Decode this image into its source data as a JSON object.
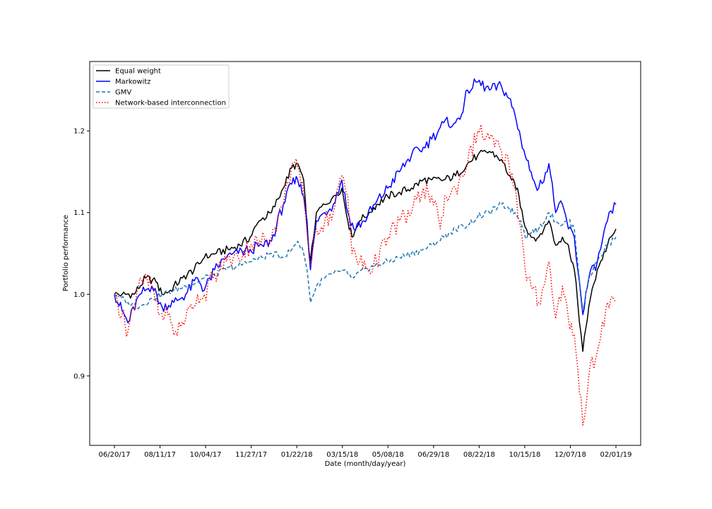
{
  "chart_data": {
    "type": "line",
    "title": "",
    "xlabel": "Date (month/day/year)",
    "ylabel": "Portfolio performance",
    "x_tick_labels": [
      "06/20/17",
      "08/11/17",
      "10/04/17",
      "11/27/17",
      "01/22/18",
      "03/15/18",
      "05/08/18",
      "06/29/18",
      "08/22/18",
      "10/15/18",
      "12/07/18",
      "02/01/19"
    ],
    "y_tick_labels": [
      "0.9",
      "1.0",
      "1.1",
      "1.2"
    ],
    "ylim": [
      0.815,
      1.285
    ],
    "grid": false,
    "legend_position": "top-left",
    "x_anchor_dates": [
      "06/20/17",
      "02/01/19"
    ],
    "series": [
      {
        "name": "Equal weight",
        "color": "#000000",
        "style": "solid",
        "points": [
          [
            "06/20/17",
            1.0
          ],
          [
            "06/29/17",
            1.0
          ],
          [
            "07/13/17",
            1.0
          ],
          [
            "07/27/17",
            1.02
          ],
          [
            "08/08/17",
            1.015
          ],
          [
            "08/15/17",
            1.0
          ],
          [
            "08/25/17",
            1.005
          ],
          [
            "09/08/17",
            1.02
          ],
          [
            "09/22/17",
            1.03
          ],
          [
            "10/04/17",
            1.045
          ],
          [
            "10/18/17",
            1.05
          ],
          [
            "11/01/17",
            1.055
          ],
          [
            "11/15/17",
            1.06
          ],
          [
            "11/27/17",
            1.07
          ],
          [
            "12/08/17",
            1.09
          ],
          [
            "12/22/17",
            1.1
          ],
          [
            "01/05/18",
            1.13
          ],
          [
            "01/15/18",
            1.155
          ],
          [
            "01/22/18",
            1.16
          ],
          [
            "01/29/18",
            1.14
          ],
          [
            "02/02/18",
            1.08
          ],
          [
            "02/06/18",
            1.04
          ],
          [
            "02/13/18",
            1.1
          ],
          [
            "02/23/18",
            1.11
          ],
          [
            "03/05/18",
            1.12
          ],
          [
            "03/15/18",
            1.13
          ],
          [
            "03/22/18",
            1.09
          ],
          [
            "03/27/18",
            1.07
          ],
          [
            "04/05/18",
            1.09
          ],
          [
            "04/16/18",
            1.1
          ],
          [
            "04/25/18",
            1.11
          ],
          [
            "05/08/18",
            1.12
          ],
          [
            "05/22/18",
            1.125
          ],
          [
            "06/05/18",
            1.13
          ],
          [
            "06/19/18",
            1.14
          ],
          [
            "06/29/18",
            1.14
          ],
          [
            "07/13/18",
            1.14
          ],
          [
            "07/27/18",
            1.145
          ],
          [
            "08/10/18",
            1.16
          ],
          [
            "08/22/18",
            1.17
          ],
          [
            "09/05/18",
            1.175
          ],
          [
            "09/19/18",
            1.165
          ],
          [
            "10/01/18",
            1.14
          ],
          [
            "10/08/18",
            1.13
          ],
          [
            "10/15/18",
            1.09
          ],
          [
            "10/24/18",
            1.07
          ],
          [
            "11/02/18",
            1.07
          ],
          [
            "11/14/18",
            1.09
          ],
          [
            "11/22/18",
            1.06
          ],
          [
            "11/30/18",
            1.07
          ],
          [
            "12/07/18",
            1.06
          ],
          [
            "12/14/18",
            1.03
          ],
          [
            "12/24/18",
            0.93
          ],
          [
            "12/31/18",
            0.985
          ],
          [
            "01/10/19",
            1.03
          ],
          [
            "01/22/19",
            1.06
          ],
          [
            "02/01/19",
            1.08
          ]
        ]
      },
      {
        "name": "Markowitz",
        "color": "#0000ff",
        "style": "solid",
        "points": [
          [
            "06/20/17",
            1.0
          ],
          [
            "06/29/17",
            0.98
          ],
          [
            "07/06/17",
            0.965
          ],
          [
            "07/20/17",
            1.0
          ],
          [
            "08/03/17",
            1.01
          ],
          [
            "08/15/17",
            0.985
          ],
          [
            "08/29/17",
            0.99
          ],
          [
            "09/12/17",
            1.0
          ],
          [
            "09/26/17",
            1.02
          ],
          [
            "10/04/17",
            1.005
          ],
          [
            "10/16/17",
            1.03
          ],
          [
            "10/30/17",
            1.045
          ],
          [
            "11/13/17",
            1.05
          ],
          [
            "11/27/17",
            1.055
          ],
          [
            "12/11/17",
            1.06
          ],
          [
            "12/22/17",
            1.065
          ],
          [
            "01/05/18",
            1.11
          ],
          [
            "01/15/18",
            1.135
          ],
          [
            "01/22/18",
            1.14
          ],
          [
            "01/29/18",
            1.12
          ],
          [
            "02/02/18",
            1.09
          ],
          [
            "02/06/18",
            1.03
          ],
          [
            "02/13/18",
            1.09
          ],
          [
            "02/23/18",
            1.1
          ],
          [
            "03/05/18",
            1.11
          ],
          [
            "03/15/18",
            1.14
          ],
          [
            "03/22/18",
            1.1
          ],
          [
            "03/29/18",
            1.08
          ],
          [
            "04/10/18",
            1.09
          ],
          [
            "04/23/18",
            1.11
          ],
          [
            "05/08/18",
            1.13
          ],
          [
            "05/22/18",
            1.15
          ],
          [
            "06/05/18",
            1.17
          ],
          [
            "06/19/18",
            1.18
          ],
          [
            "06/29/18",
            1.19
          ],
          [
            "07/13/18",
            1.21
          ],
          [
            "07/27/18",
            1.21
          ],
          [
            "08/03/18",
            1.22
          ],
          [
            "08/10/18",
            1.25
          ],
          [
            "08/22/18",
            1.26
          ],
          [
            "09/05/18",
            1.25
          ],
          [
            "09/19/18",
            1.255
          ],
          [
            "09/28/18",
            1.24
          ],
          [
            "10/05/18",
            1.22
          ],
          [
            "10/12/18",
            1.19
          ],
          [
            "10/17/18",
            1.17
          ],
          [
            "10/24/18",
            1.15
          ],
          [
            "11/02/18",
            1.13
          ],
          [
            "11/14/18",
            1.16
          ],
          [
            "11/22/18",
            1.1
          ],
          [
            "11/30/18",
            1.11
          ],
          [
            "12/07/18",
            1.08
          ],
          [
            "12/14/18",
            1.07
          ],
          [
            "12/24/18",
            0.975
          ],
          [
            "12/31/18",
            1.02
          ],
          [
            "01/10/19",
            1.04
          ],
          [
            "01/22/19",
            1.09
          ],
          [
            "02/01/19",
            1.11
          ]
        ]
      },
      {
        "name": "GMV",
        "color": "#1f77b4",
        "style": "dashed",
        "points": [
          [
            "06/20/17",
            1.0
          ],
          [
            "07/06/17",
            0.99
          ],
          [
            "07/20/17",
            0.985
          ],
          [
            "08/03/17",
            0.995
          ],
          [
            "08/15/17",
            1.0
          ],
          [
            "08/29/17",
            1.005
          ],
          [
            "09/12/17",
            1.01
          ],
          [
            "09/26/17",
            1.015
          ],
          [
            "10/04/17",
            1.02
          ],
          [
            "10/16/17",
            1.025
          ],
          [
            "10/30/17",
            1.03
          ],
          [
            "11/13/17",
            1.035
          ],
          [
            "11/27/17",
            1.04
          ],
          [
            "12/11/17",
            1.045
          ],
          [
            "12/22/17",
            1.05
          ],
          [
            "01/05/18",
            1.045
          ],
          [
            "01/15/18",
            1.055
          ],
          [
            "01/22/18",
            1.065
          ],
          [
            "01/29/18",
            1.05
          ],
          [
            "02/02/18",
            1.03
          ],
          [
            "02/06/18",
            0.99
          ],
          [
            "02/13/18",
            1.01
          ],
          [
            "02/23/18",
            1.02
          ],
          [
            "03/05/18",
            1.025
          ],
          [
            "03/15/18",
            1.03
          ],
          [
            "03/22/18",
            1.025
          ],
          [
            "03/29/18",
            1.02
          ],
          [
            "04/10/18",
            1.03
          ],
          [
            "04/23/18",
            1.035
          ],
          [
            "05/08/18",
            1.04
          ],
          [
            "05/22/18",
            1.045
          ],
          [
            "06/05/18",
            1.05
          ],
          [
            "06/19/18",
            1.055
          ],
          [
            "06/29/18",
            1.06
          ],
          [
            "07/13/18",
            1.07
          ],
          [
            "07/27/18",
            1.08
          ],
          [
            "08/10/18",
            1.085
          ],
          [
            "08/22/18",
            1.095
          ],
          [
            "09/05/18",
            1.1
          ],
          [
            "09/19/18",
            1.11
          ],
          [
            "09/28/18",
            1.105
          ],
          [
            "10/05/18",
            1.1
          ],
          [
            "10/12/18",
            1.09
          ],
          [
            "10/17/18",
            1.07
          ],
          [
            "10/24/18",
            1.075
          ],
          [
            "11/02/18",
            1.08
          ],
          [
            "11/14/18",
            1.1
          ],
          [
            "11/22/18",
            1.09
          ],
          [
            "11/30/18",
            1.085
          ],
          [
            "12/07/18",
            1.09
          ],
          [
            "12/14/18",
            1.08
          ],
          [
            "12/24/18",
            0.98
          ],
          [
            "12/31/18",
            1.02
          ],
          [
            "01/10/19",
            1.04
          ],
          [
            "01/22/19",
            1.06
          ],
          [
            "02/01/19",
            1.07
          ]
        ]
      },
      {
        "name": "Network-based interconnection",
        "color": "#ff0000",
        "style": "dotted",
        "points": [
          [
            "06/20/17",
            1.0
          ],
          [
            "06/29/17",
            0.975
          ],
          [
            "07/06/17",
            0.955
          ],
          [
            "07/20/17",
            1.02
          ],
          [
            "08/03/17",
            1.01
          ],
          [
            "08/11/17",
            0.975
          ],
          [
            "08/22/17",
            0.975
          ],
          [
            "08/29/17",
            0.95
          ],
          [
            "09/12/17",
            0.97
          ],
          [
            "09/26/17",
            1.0
          ],
          [
            "10/04/17",
            1.0
          ],
          [
            "10/16/17",
            1.025
          ],
          [
            "10/30/17",
            1.04
          ],
          [
            "11/13/17",
            1.045
          ],
          [
            "11/27/17",
            1.06
          ],
          [
            "12/08/17",
            1.065
          ],
          [
            "12/22/17",
            1.07
          ],
          [
            "01/05/18",
            1.11
          ],
          [
            "01/15/18",
            1.16
          ],
          [
            "01/22/18",
            1.155
          ],
          [
            "01/29/18",
            1.12
          ],
          [
            "02/02/18",
            1.08
          ],
          [
            "02/06/18",
            1.035
          ],
          [
            "02/13/18",
            1.08
          ],
          [
            "02/23/18",
            1.09
          ],
          [
            "03/05/18",
            1.1
          ],
          [
            "03/15/18",
            1.145
          ],
          [
            "03/22/18",
            1.12
          ],
          [
            "03/27/18",
            1.05
          ],
          [
            "04/05/18",
            1.04
          ],
          [
            "04/16/18",
            1.03
          ],
          [
            "04/25/18",
            1.04
          ],
          [
            "05/08/18",
            1.07
          ],
          [
            "05/22/18",
            1.09
          ],
          [
            "06/05/18",
            1.1
          ],
          [
            "06/19/18",
            1.13
          ],
          [
            "06/29/18",
            1.12
          ],
          [
            "07/09/18",
            1.08
          ],
          [
            "07/16/18",
            1.12
          ],
          [
            "07/27/18",
            1.13
          ],
          [
            "08/10/18",
            1.16
          ],
          [
            "08/22/18",
            1.2
          ],
          [
            "09/05/18",
            1.19
          ],
          [
            "09/19/18",
            1.175
          ],
          [
            "09/28/18",
            1.16
          ],
          [
            "10/05/18",
            1.13
          ],
          [
            "10/12/18",
            1.08
          ],
          [
            "10/17/18",
            1.03
          ],
          [
            "10/24/18",
            1.01
          ],
          [
            "11/02/18",
            0.99
          ],
          [
            "11/14/18",
            1.04
          ],
          [
            "11/22/18",
            0.97
          ],
          [
            "11/30/18",
            1.01
          ],
          [
            "12/07/18",
            0.97
          ],
          [
            "12/14/18",
            0.95
          ],
          [
            "12/24/18",
            0.84
          ],
          [
            "12/31/18",
            0.9
          ],
          [
            "01/10/19",
            0.93
          ],
          [
            "01/22/19",
            0.99
          ],
          [
            "02/01/19",
            0.99
          ]
        ]
      }
    ]
  }
}
